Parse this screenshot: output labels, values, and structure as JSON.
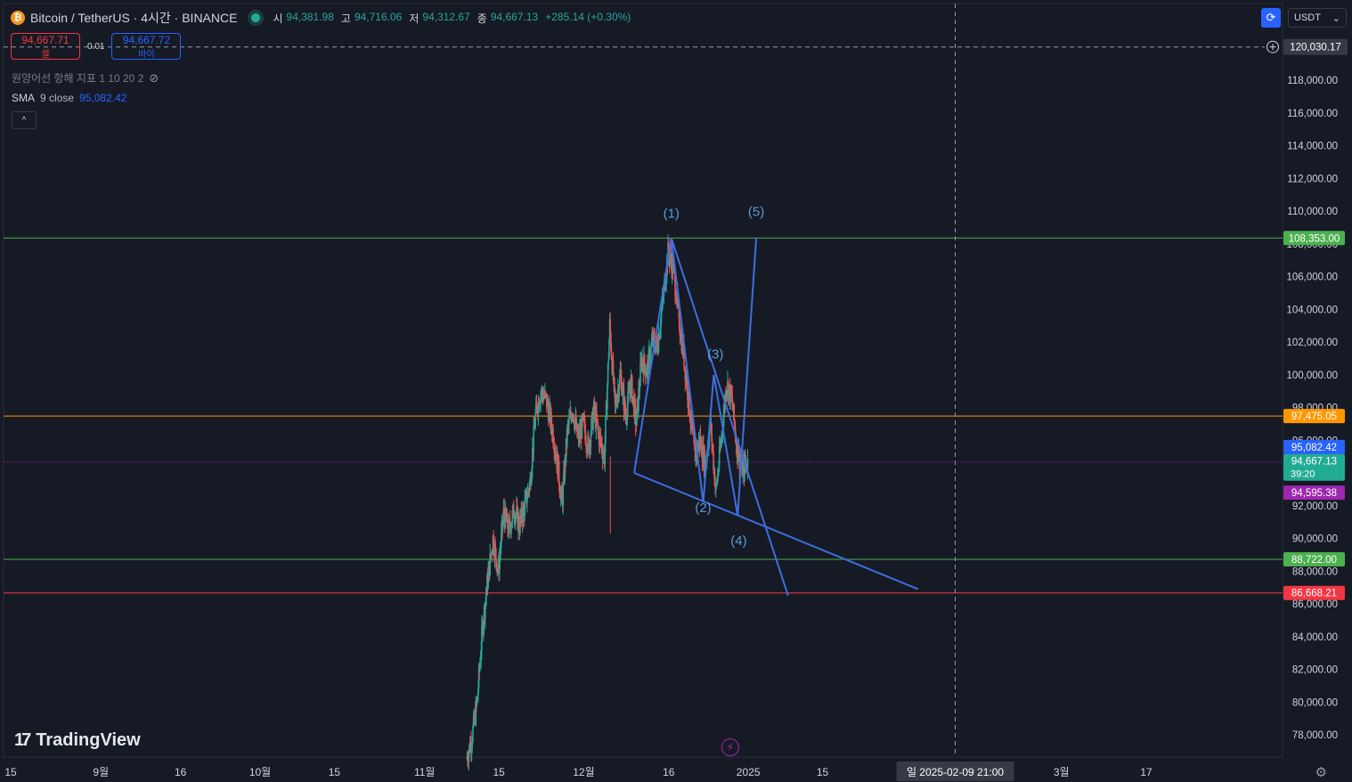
{
  "header": {
    "symbol": "Bitcoin / TetherUS · 4시간 · BINANCE",
    "coin_glyph": "₿",
    "open_label": "시",
    "open": "94,381.98",
    "high_label": "고",
    "high": "94,716.06",
    "low_label": "저",
    "low": "94,312.67",
    "close_label": "종",
    "close": "94,667.13",
    "change": "+285.14 (+0.30%)"
  },
  "trade": {
    "sell_price": "94,667.71",
    "sell_label": "셀",
    "spread": "0.01",
    "buy_price": "94,667.72",
    "buy_label": "바이"
  },
  "indicators": {
    "hidden_indicator": "원양어선 항해 지표 1 10 20 2",
    "sma_name": "SMA",
    "sma_params": "9 close",
    "sma_value": "95,082.42",
    "collapse_glyph": "^"
  },
  "toolbar": {
    "currency": "USDT",
    "dropdown_glyph": "⌄",
    "sync_glyph": "⟳"
  },
  "branding": {
    "logo_mark": "17",
    "name": "TradingView"
  },
  "icons": {
    "eye": "eye-slash-icon",
    "lightning": "lightning-icon",
    "settings": "settings-icon",
    "add": "plus-circle-icon"
  },
  "chart_data": {
    "type": "candlestick",
    "y_axis": {
      "min": 77000,
      "max": 121000,
      "ticks": [
        118000,
        116000,
        114000,
        112000,
        110000,
        108000,
        106000,
        104000,
        102000,
        100000,
        98000,
        96000,
        94000,
        92000,
        90000,
        88000,
        86000,
        84000,
        82000,
        80000,
        78000
      ],
      "tick_labels": [
        "118,000.00",
        "116,000.00",
        "114,000.00",
        "112,000.00",
        "110,000.00",
        "108,000.00",
        "106,000.00",
        "104,000.00",
        "102,000.00",
        "100,000.00",
        "98,000.00",
        "96,000.00",
        "94,000.00",
        "92,000.00",
        "90,000.00",
        "88,000.00",
        "86,000.00",
        "84,000.00",
        "82,000.00",
        "80,000.00",
        "78,000.00"
      ]
    },
    "x_axis": {
      "labels": [
        {
          "text": "15",
          "t": 0
        },
        {
          "text": "9월",
          "t": 17
        },
        {
          "text": "16",
          "t": 32
        },
        {
          "text": "10월",
          "t": 47
        },
        {
          "text": "15",
          "t": 61
        },
        {
          "text": "11월",
          "t": 78
        },
        {
          "text": "15",
          "t": 92
        },
        {
          "text": "12월",
          "t": 108
        },
        {
          "text": "16",
          "t": 124
        },
        {
          "text": "2025",
          "t": 139
        },
        {
          "text": "15",
          "t": 153
        },
        {
          "text": "3월",
          "t": 198
        },
        {
          "text": "17",
          "t": 214
        }
      ],
      "min": 0,
      "max": 247,
      "crosshair_label": "일 2025-02-09   21:00",
      "crosshair_t": 178
    },
    "horizontal_levels": [
      {
        "price": 108353,
        "label": "108,353.00",
        "color": "#4caf50"
      },
      {
        "price": 97475,
        "label": "97,475.05",
        "color": "#ff9800"
      },
      {
        "price": 88722,
        "label": "88,722.00",
        "color": "#4caf50"
      },
      {
        "price": 86668.21,
        "label": "86,668.21",
        "color": "#f23645"
      }
    ],
    "current_price": {
      "price": 94667.13,
      "label": "94,667.13",
      "countdown": "39:20",
      "color": "#22ab94"
    },
    "sma_label": {
      "price": 95082.42,
      "label": "95,082.42",
      "color": "#2962ff"
    },
    "low_marker": {
      "price": 94595.38,
      "label": "94,595.38",
      "color": "#9c27b0"
    },
    "crosshair_price": {
      "price": 120030.17,
      "label": "120,030.17"
    },
    "ohlc_path": [
      [
        86,
        76500
      ],
      [
        87,
        77800
      ],
      [
        88,
        80000
      ],
      [
        89,
        84500
      ],
      [
        90,
        87500
      ],
      [
        91,
        90000
      ],
      [
        92,
        88000
      ],
      [
        93,
        91500
      ],
      [
        94,
        90500
      ],
      [
        95,
        91800
      ],
      [
        96,
        90800
      ],
      [
        97,
        92000
      ],
      [
        98,
        93500
      ],
      [
        99,
        97500
      ],
      [
        100,
        99000
      ],
      [
        101,
        98500
      ],
      [
        102,
        97000
      ],
      [
        103,
        95000
      ],
      [
        104,
        92000
      ],
      [
        105,
        96500
      ],
      [
        106,
        98000
      ],
      [
        107,
        96000
      ],
      [
        108,
        97000
      ],
      [
        109,
        95500
      ],
      [
        110,
        97800
      ],
      [
        111,
        96200
      ],
      [
        112,
        95000
      ],
      [
        113,
        103000
      ],
      [
        114,
        98000
      ],
      [
        115,
        100000
      ],
      [
        116,
        97500
      ],
      [
        117,
        99500
      ],
      [
        118,
        97000
      ],
      [
        119,
        101000
      ],
      [
        120,
        100200
      ],
      [
        121,
        102000
      ],
      [
        122,
        101800
      ],
      [
        123,
        104500
      ],
      [
        124,
        107500
      ],
      [
        125,
        106500
      ],
      [
        126,
        103500
      ],
      [
        127,
        101000
      ],
      [
        128,
        98000
      ],
      [
        129,
        95000
      ],
      [
        130,
        96000
      ],
      [
        131,
        94500
      ],
      [
        132,
        97000
      ],
      [
        133,
        92800
      ],
      [
        134,
        96000
      ],
      [
        135,
        99500
      ],
      [
        136,
        98500
      ],
      [
        137,
        95500
      ],
      [
        138,
        94200
      ],
      [
        139,
        94667
      ]
    ],
    "wave_labels": [
      {
        "text": "(1)",
        "t": 124.5,
        "price": 109600
      },
      {
        "text": "(2)",
        "t": 130.5,
        "price": 91600
      },
      {
        "text": "(3)",
        "t": 132.8,
        "price": 101000
      },
      {
        "text": "(4)",
        "t": 137.2,
        "price": 89600
      },
      {
        "text": "(5)",
        "t": 140.5,
        "price": 109700
      }
    ],
    "drawn_lines": [
      {
        "points": [
          [
            117.5,
            94000
          ],
          [
            124.5,
            108353
          ],
          [
            130.5,
            92200
          ],
          [
            132.5,
            100000
          ],
          [
            137,
            91400
          ],
          [
            140.5,
            108353
          ]
        ]
      },
      {
        "points": [
          [
            124.5,
            108353
          ],
          [
            146.5,
            86500
          ]
        ]
      },
      {
        "points": [
          [
            117.5,
            94000
          ],
          [
            171,
            86900
          ]
        ]
      }
    ]
  }
}
